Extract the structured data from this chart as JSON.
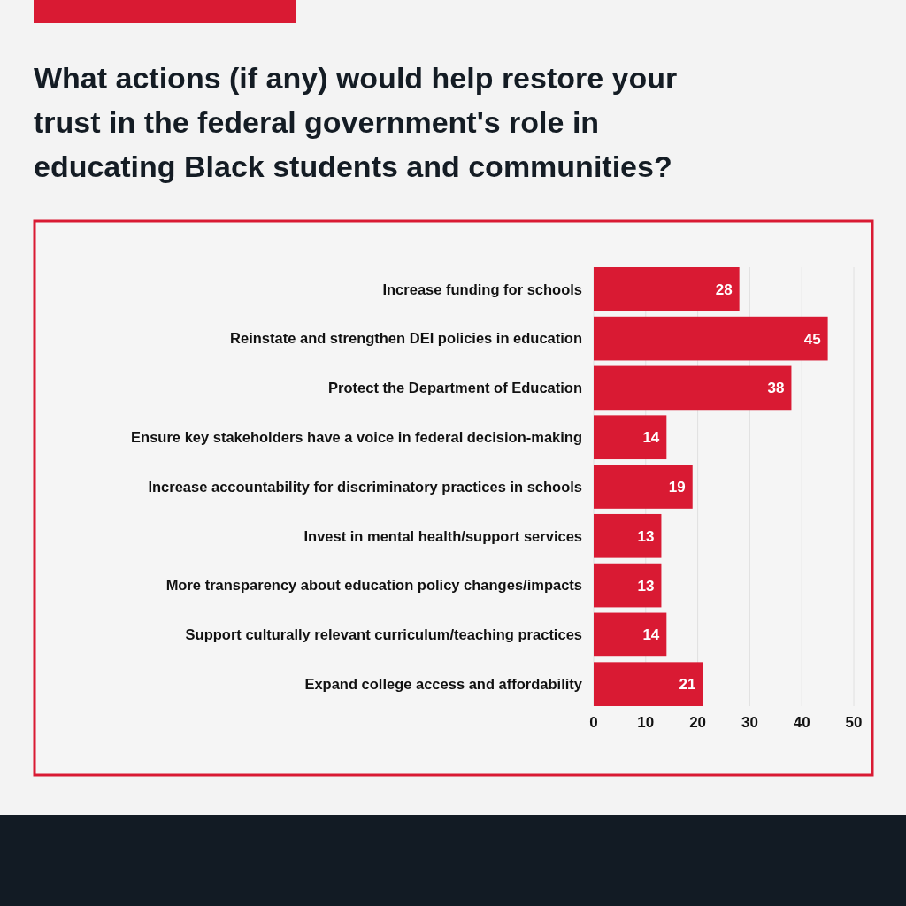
{
  "chart_data": {
    "type": "bar",
    "orientation": "horizontal",
    "title": "What actions (if any) would help restore your trust in the federal government's role in educating Black students and communities?",
    "categories": [
      "Increase funding for schools",
      "Reinstate and strengthen DEI policies in education",
      "Protect the Department of Education",
      "Ensure key stakeholders have a voice in federal decision-making",
      "Increase accountability for discriminatory practices in schools",
      "Invest in mental health/support services",
      "More transparency about education policy changes/impacts",
      "Support culturally relevant curriculum/teaching practices",
      "Expand college access and affordability"
    ],
    "values": [
      28,
      45,
      38,
      14,
      19,
      13,
      13,
      14,
      21
    ],
    "color": "#d91a33",
    "xlim": [
      0,
      50
    ],
    "xticks": [
      0,
      10,
      20,
      30,
      40,
      50
    ],
    "grid": "x",
    "data_labels": true
  }
}
